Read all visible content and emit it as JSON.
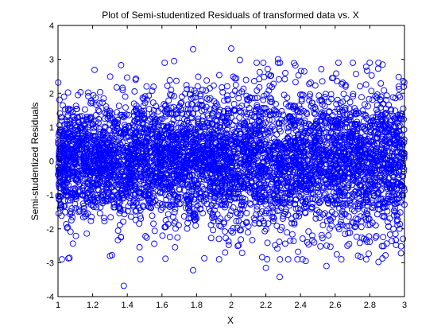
{
  "chart_data": {
    "type": "scatter",
    "title": "Plot of Semi-studentized Residuals of transformed data vs. X",
    "xlabel": "X",
    "ylabel": "Semi-studentized Residuals",
    "xlim": [
      1,
      3
    ],
    "ylim": [
      -4,
      4
    ],
    "xticks": [
      1,
      1.2,
      1.4,
      1.6,
      1.8,
      2,
      2.2,
      2.4,
      2.6,
      2.8,
      3
    ],
    "xtick_labels": [
      "1",
      "1.2",
      "1.4",
      "1.6",
      "1.8",
      "2",
      "2.2",
      "2.4",
      "2.6",
      "2.8",
      "3"
    ],
    "yticks": [
      -4,
      -3,
      -2,
      -1,
      0,
      1,
      2,
      3,
      4
    ],
    "ytick_labels": [
      "-4",
      "-3",
      "-2",
      "-1",
      "0",
      "1",
      "2",
      "3",
      "4"
    ],
    "grid": false,
    "marker": "circle-open",
    "marker_color": "#0000ff",
    "outliers": [
      {
        "x": 1.38,
        "y": -3.68
      },
      {
        "x": 1.78,
        "y": 3.3
      },
      {
        "x": 2.0,
        "y": 3.32
      },
      {
        "x": 1.78,
        "y": -3.22
      },
      {
        "x": 2.28,
        "y": -3.42
      },
      {
        "x": 2.55,
        "y": -3.1
      },
      {
        "x": 1.62,
        "y": -2.88
      },
      {
        "x": 1.06,
        "y": -2.87
      },
      {
        "x": 2.27,
        "y": 3.0
      },
      {
        "x": 2.05,
        "y": 2.98
      },
      {
        "x": 1.67,
        "y": 2.95
      },
      {
        "x": 2.37,
        "y": 2.82
      },
      {
        "x": 1.45,
        "y": 2.43
      },
      {
        "x": 1.13,
        "y": 2.03
      },
      {
        "x": 2.98,
        "y": -2.72
      },
      {
        "x": 2.85,
        "y": -2.98
      },
      {
        "x": 2.43,
        "y": -2.95
      },
      {
        "x": 1.93,
        "y": -2.9
      },
      {
        "x": 1.3,
        "y": -2.8
      },
      {
        "x": 2.2,
        "y": -3.15
      }
    ]
  }
}
